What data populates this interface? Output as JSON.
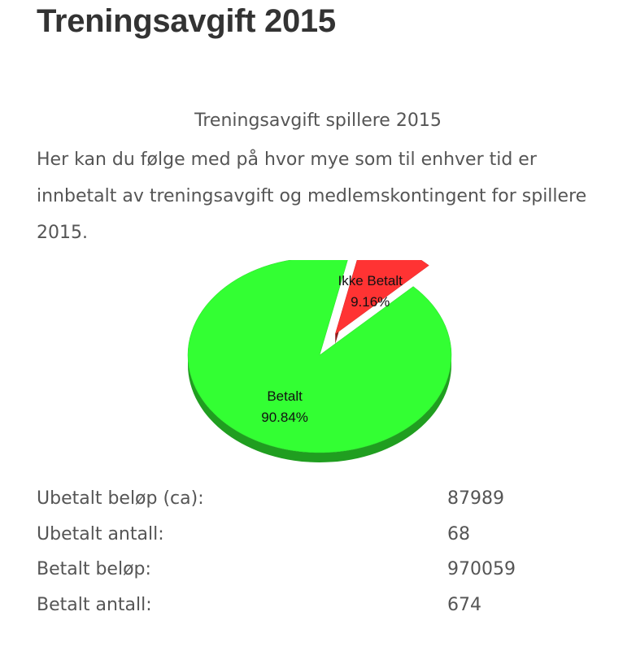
{
  "page": {
    "title": "Treningsavgift 2015"
  },
  "chart": {
    "caption": "Treningsavgift spillere 2015"
  },
  "description": "Her kan du følge med på hvor mye som til enhver tid er innbetalt av treningsavgift og medlemskontingent for spillere 2015.",
  "chart_data": {
    "type": "pie",
    "title": "",
    "style": "3d",
    "slices": [
      {
        "name": "Ikke Betalt",
        "value": 9.16,
        "label": "9.16%",
        "color": "#ff3333",
        "exploded": true
      },
      {
        "name": "Betalt",
        "value": 90.84,
        "label": "90.84%",
        "color": "#33ff33",
        "exploded": false
      }
    ]
  },
  "stats": [
    {
      "label": "Ubetalt beløp (ca):",
      "value": "87989"
    },
    {
      "label": "Ubetalt antall:",
      "value": "68"
    },
    {
      "label": "Betalt beløp:",
      "value": "970059"
    },
    {
      "label": "Betalt antall:",
      "value": "674"
    }
  ]
}
